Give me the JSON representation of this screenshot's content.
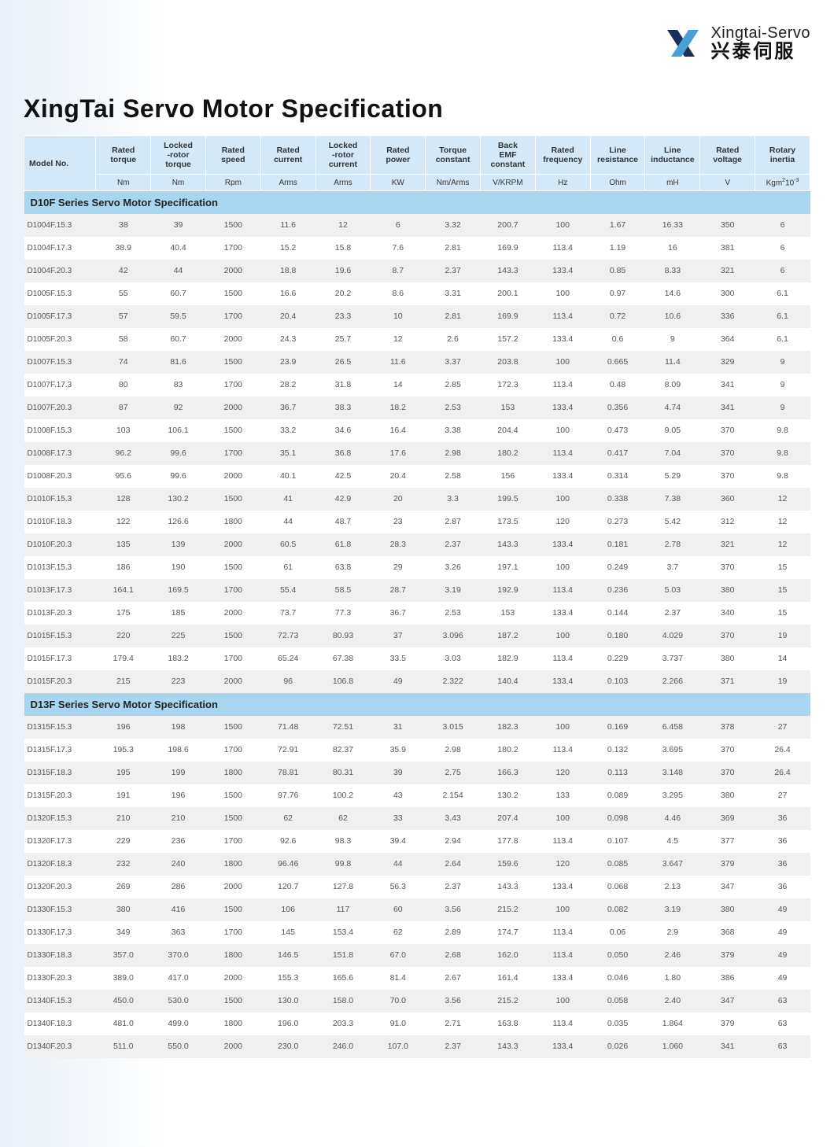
{
  "brand": {
    "en": "Xingtai-Servo",
    "cn": "兴泰伺服"
  },
  "title": "XingTai Servo Motor Specification",
  "columns": [
    {
      "label": "Model No.",
      "unit": ""
    },
    {
      "label": "Rated torque",
      "unit": "Nm"
    },
    {
      "label": "Locked -rotor torque",
      "unit": "Nm"
    },
    {
      "label": "Rated speed",
      "unit": "Rpm"
    },
    {
      "label": "Rated current",
      "unit": "Arms"
    },
    {
      "label": "Locked -rotor current",
      "unit": "Arms"
    },
    {
      "label": "Rated power",
      "unit": "KW"
    },
    {
      "label": "Torque constant",
      "unit": "Nm/Arms"
    },
    {
      "label": "Back EMF constant",
      "unit": "V/KRPM"
    },
    {
      "label": "Rated frequency",
      "unit": "Hz"
    },
    {
      "label": "Line resistance",
      "unit": "Ohm"
    },
    {
      "label": "Line inductance",
      "unit": "mH"
    },
    {
      "label": "Rated voltage",
      "unit": "V"
    },
    {
      "label": "Rotary inertia",
      "unit": "Kgm²10⁻³"
    }
  ],
  "sections": [
    {
      "title": "D10F Series Servo Motor Specification",
      "rows": [
        [
          "D1004F.15.3",
          "38",
          "39",
          "1500",
          "11.6",
          "12",
          "6",
          "3.32",
          "200.7",
          "100",
          "1.67",
          "16.33",
          "350",
          "6"
        ],
        [
          "D1004F.17.3",
          "38.9",
          "40.4",
          "1700",
          "15.2",
          "15.8",
          "7.6",
          "2.81",
          "169.9",
          "113.4",
          "1.19",
          "16",
          "381",
          "6"
        ],
        [
          "D1004F.20.3",
          "42",
          "44",
          "2000",
          "18.8",
          "19.6",
          "8.7",
          "2.37",
          "143.3",
          "133.4",
          "0.85",
          "8.33",
          "321",
          "6"
        ],
        [
          "D1005F.15.3",
          "55",
          "60.7",
          "1500",
          "16.6",
          "20.2",
          "8.6",
          "3.31",
          "200.1",
          "100",
          "0.97",
          "14.6",
          "300",
          "6.1"
        ],
        [
          "D1005F.17.3",
          "57",
          "59.5",
          "1700",
          "20.4",
          "23.3",
          "10",
          "2.81",
          "169.9",
          "113.4",
          "0.72",
          "10.6",
          "336",
          "6.1"
        ],
        [
          "D1005F.20.3",
          "58",
          "60.7",
          "2000",
          "24.3",
          "25.7",
          "12",
          "2.6",
          "157.2",
          "133.4",
          "0.6",
          "9",
          "364",
          "6.1"
        ],
        [
          "D1007F.15.3",
          "74",
          "81.6",
          "1500",
          "23.9",
          "26.5",
          "11.6",
          "3.37",
          "203.8",
          "100",
          "0.665",
          "11.4",
          "329",
          "9"
        ],
        [
          "D1007F.17.3",
          "80",
          "83",
          "1700",
          "28.2",
          "31.8",
          "14",
          "2.85",
          "172.3",
          "113.4",
          "0.48",
          "8.09",
          "341",
          "9"
        ],
        [
          "D1007F.20.3",
          "87",
          "92",
          "2000",
          "36.7",
          "38.3",
          "18.2",
          "2.53",
          "153",
          "133.4",
          "0.356",
          "4.74",
          "341",
          "9"
        ],
        [
          "D1008F.15.3",
          "103",
          "106.1",
          "1500",
          "33.2",
          "34.6",
          "16.4",
          "3.38",
          "204.4",
          "100",
          "0.473",
          "9.05",
          "370",
          "9.8"
        ],
        [
          "D1008F.17.3",
          "96.2",
          "99.6",
          "1700",
          "35.1",
          "36.8",
          "17.6",
          "2.98",
          "180.2",
          "113.4",
          "0.417",
          "7.04",
          "370",
          "9.8"
        ],
        [
          "D1008F.20.3",
          "95.6",
          "99.6",
          "2000",
          "40.1",
          "42.5",
          "20.4",
          "2.58",
          "156",
          "133.4",
          "0.314",
          "5.29",
          "370",
          "9.8"
        ],
        [
          "D1010F.15.3",
          "128",
          "130.2",
          "1500",
          "41",
          "42.9",
          "20",
          "3.3",
          "199.5",
          "100",
          "0.338",
          "7.38",
          "360",
          "12"
        ],
        [
          "D1010F.18.3",
          "122",
          "126.6",
          "1800",
          "44",
          "48.7",
          "23",
          "2.87",
          "173.5",
          "120",
          "0.273",
          "5.42",
          "312",
          "12"
        ],
        [
          "D1010F.20.3",
          "135",
          "139",
          "2000",
          "60.5",
          "61.8",
          "28.3",
          "2.37",
          "143.3",
          "133.4",
          "0.181",
          "2.78",
          "321",
          "12"
        ],
        [
          "D1013F.15.3",
          "186",
          "190",
          "1500",
          "61",
          "63.8",
          "29",
          "3.26",
          "197.1",
          "100",
          "0.249",
          "3.7",
          "370",
          "15"
        ],
        [
          "D1013F.17.3",
          "164.1",
          "169.5",
          "1700",
          "55.4",
          "58.5",
          "28.7",
          "3.19",
          "192.9",
          "113.4",
          "0.236",
          "5.03",
          "380",
          "15"
        ],
        [
          "D1013F.20.3",
          "175",
          "185",
          "2000",
          "73.7",
          "77.3",
          "36.7",
          "2.53",
          "153",
          "133.4",
          "0.144",
          "2.37",
          "340",
          "15"
        ],
        [
          "D1015F.15.3",
          "220",
          "225",
          "1500",
          "72.73",
          "80.93",
          "37",
          "3.096",
          "187.2",
          "100",
          "0.180",
          "4.029",
          "370",
          "19"
        ],
        [
          "D1015F.17.3",
          "179.4",
          "183.2",
          "1700",
          "65.24",
          "67.38",
          "33.5",
          "3.03",
          "182.9",
          "113.4",
          "0.229",
          "3.737",
          "380",
          "14"
        ],
        [
          "D1015F.20.3",
          "215",
          "223",
          "2000",
          "96",
          "106.8",
          "49",
          "2.322",
          "140.4",
          "133.4",
          "0.103",
          "2.266",
          "371",
          "19"
        ]
      ]
    },
    {
      "title": "D13F Series Servo Motor Specification",
      "rows": [
        [
          "D1315F.15.3",
          "196",
          "198",
          "1500",
          "71.48",
          "72.51",
          "31",
          "3.015",
          "182.3",
          "100",
          "0.169",
          "6.458",
          "378",
          "27"
        ],
        [
          "D1315F.17.3",
          "195.3",
          "198.6",
          "1700",
          "72.91",
          "82.37",
          "35.9",
          "2.98",
          "180.2",
          "113.4",
          "0.132",
          "3.695",
          "370",
          "26.4"
        ],
        [
          "D1315F.18.3",
          "195",
          "199",
          "1800",
          "78.81",
          "80.31",
          "39",
          "2.75",
          "166.3",
          "120",
          "0.113",
          "3.148",
          "370",
          "26.4"
        ],
        [
          "D1315F.20.3",
          "191",
          "196",
          "1500",
          "97.76",
          "100.2",
          "43",
          "2.154",
          "130.2",
          "133",
          "0.089",
          "3.295",
          "380",
          "27"
        ],
        [
          "D1320F.15.3",
          "210",
          "210",
          "1500",
          "62",
          "62",
          "33",
          "3.43",
          "207.4",
          "100",
          "0.098",
          "4.46",
          "369",
          "36"
        ],
        [
          "D1320F.17.3",
          "229",
          "236",
          "1700",
          "92.6",
          "98.3",
          "39.4",
          "2.94",
          "177.8",
          "113.4",
          "0.107",
          "4.5",
          "377",
          "36"
        ],
        [
          "D1320F.18.3",
          "232",
          "240",
          "1800",
          "96.46",
          "99.8",
          "44",
          "2.64",
          "159.6",
          "120",
          "0.085",
          "3.647",
          "379",
          "36"
        ],
        [
          "D1320F.20.3",
          "269",
          "286",
          "2000",
          "120.7",
          "127.8",
          "56.3",
          "2.37",
          "143.3",
          "133.4",
          "0.068",
          "2.13",
          "347",
          "36"
        ],
        [
          "D1330F.15.3",
          "380",
          "416",
          "1500",
          "106",
          "117",
          "60",
          "3.56",
          "215.2",
          "100",
          "0.082",
          "3.19",
          "380",
          "49"
        ],
        [
          "D1330F.17.3",
          "349",
          "363",
          "1700",
          "145",
          "153.4",
          "62",
          "2.89",
          "174.7",
          "113.4",
          "0.06",
          "2.9",
          "368",
          "49"
        ],
        [
          "D1330F.18.3",
          "357.0",
          "370.0",
          "1800",
          "146.5",
          "151.8",
          "67.0",
          "2.68",
          "162.0",
          "113.4",
          "0.050",
          "2.46",
          "379",
          "49"
        ],
        [
          "D1330F.20.3",
          "389.0",
          "417.0",
          "2000",
          "155.3",
          "165.6",
          "81.4",
          "2.67",
          "161.4",
          "133.4",
          "0.046",
          "1.80",
          "386",
          "49"
        ],
        [
          "D1340F.15.3",
          "450.0",
          "530.0",
          "1500",
          "130.0",
          "158.0",
          "70.0",
          "3.56",
          "215.2",
          "100",
          "0.058",
          "2.40",
          "347",
          "63"
        ],
        [
          "D1340F.18.3",
          "481.0",
          "499.0",
          "1800",
          "196.0",
          "203.3",
          "91.0",
          "2.71",
          "163.8",
          "113.4",
          "0.035",
          "1.864",
          "379",
          "63"
        ],
        [
          "D1340F.20.3",
          "511.0",
          "550.0",
          "2000",
          "230.0",
          "246.0",
          "107.0",
          "2.37",
          "143.3",
          "133.4",
          "0.026",
          "1.060",
          "341",
          "63"
        ]
      ]
    }
  ]
}
